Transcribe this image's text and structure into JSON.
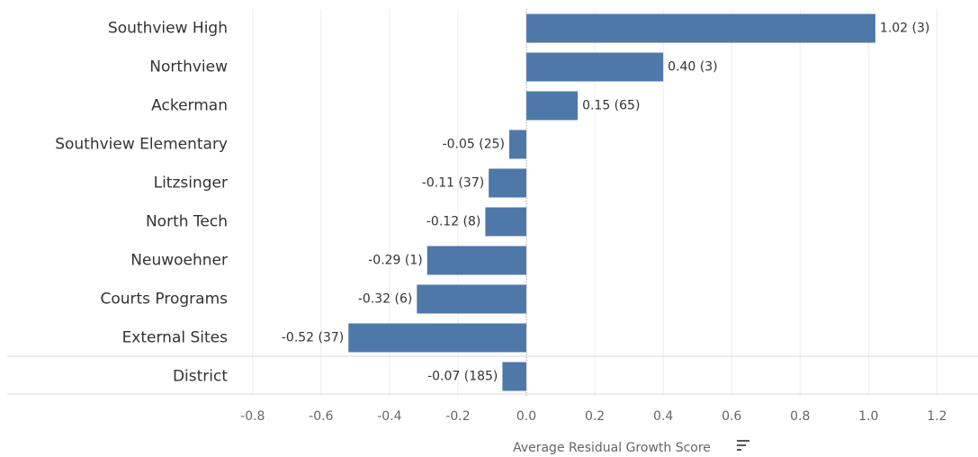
{
  "chart_data": {
    "type": "bar",
    "orientation": "horizontal",
    "xlabel": "Average Residual Growth Score",
    "categories": [
      "Southview High",
      "Northview",
      "Ackerman",
      "Southview Elementary",
      "Litzsinger",
      "North Tech",
      "Neuwoehner",
      "Courts Programs",
      "External Sites",
      "District"
    ],
    "values": [
      1.02,
      0.4,
      0.15,
      -0.05,
      -0.11,
      -0.12,
      -0.29,
      -0.32,
      -0.52,
      -0.07
    ],
    "value_labels": [
      "1.02 (3)",
      "0.40 (3)",
      "0.15 (65)",
      "-0.05 (25)",
      "-0.11 (37)",
      "-0.12 (8)",
      "-0.29 (1)",
      "-0.32 (6)",
      "-0.52 (37)",
      "-0.07 (185)"
    ],
    "color": "#4e78a8",
    "xlim": [
      -0.86,
      1.32
    ],
    "xticks": [
      -0.8,
      -0.6,
      -0.4,
      -0.2,
      {
        "value": 0,
        "label": "0.0"
      },
      0.2,
      0.4,
      0.6,
      0.8,
      {
        "value": 1,
        "label": "1.0"
      },
      1.2
    ],
    "grid": true
  }
}
